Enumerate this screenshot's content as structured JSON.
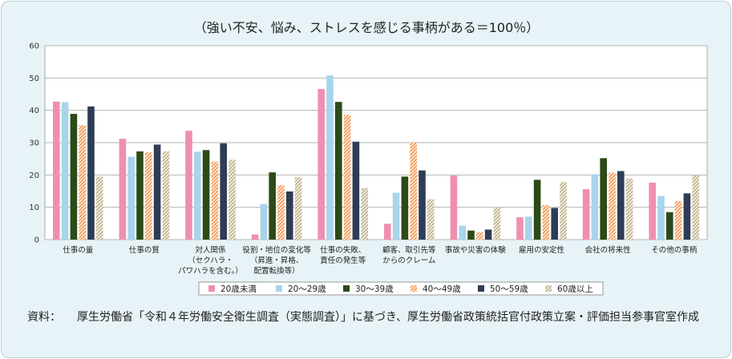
{
  "chart_data": {
    "type": "bar",
    "title": "（強い不安、悩み、ストレスを感じる事柄がある＝100％）",
    "xlabel": "",
    "ylabel": "",
    "ylim": [
      0,
      60
    ],
    "yticks": [
      0,
      10,
      20,
      30,
      40,
      50,
      60
    ],
    "grid": true,
    "legend_position": "bottom",
    "categories": [
      [
        "仕事の量"
      ],
      [
        "仕事の質"
      ],
      [
        "対人関係",
        "（セクハラ・",
        "パワハラを含む。）"
      ],
      [
        "役割・地位の変化等",
        "（昇進・昇格、",
        "配置転換等）"
      ],
      [
        "仕事の失敗、",
        "責任の発生等"
      ],
      [
        "顧客、取引先等",
        "からのクレーム"
      ],
      [
        "事故や災害の体験"
      ],
      [
        "雇用の安定性"
      ],
      [
        "会社の将来性"
      ],
      [
        "その他の事柄"
      ]
    ],
    "series": [
      {
        "name": "20歳未満",
        "color": "#ef8fb0",
        "pattern": "solid",
        "values": [
          42.7,
          31.2,
          33.7,
          1.6,
          46.6,
          4.9,
          19.8,
          6.9,
          15.6,
          17.6
        ]
      },
      {
        "name": "20～29歳",
        "color": "#a8d4ec",
        "pattern": "solid",
        "values": [
          42.5,
          25.6,
          27.2,
          11.0,
          50.8,
          14.5,
          4.3,
          7.1,
          20.2,
          13.5
        ]
      },
      {
        "name": "30～39歳",
        "color": "#2c4a18",
        "pattern": "solid",
        "values": [
          38.9,
          27.3,
          27.7,
          20.8,
          42.6,
          19.5,
          2.8,
          18.5,
          25.2,
          8.5
        ]
      },
      {
        "name": "40～49歳",
        "color": "#f59a55",
        "pattern": "stripes",
        "values": [
          35.4,
          27.0,
          24.1,
          16.8,
          38.6,
          30.2,
          2.3,
          10.7,
          20.7,
          11.9
        ]
      },
      {
        "name": "50～59歳",
        "color": "#2e3d55",
        "pattern": "solid",
        "values": [
          41.2,
          29.4,
          29.8,
          14.9,
          30.3,
          21.4,
          3.1,
          9.8,
          21.2,
          14.3
        ]
      },
      {
        "name": "60歳以上",
        "color": "#c2b38d",
        "pattern": "stripes",
        "values": [
          19.5,
          27.3,
          24.7,
          19.3,
          16.0,
          12.5,
          10.0,
          17.8,
          18.9,
          19.9
        ]
      }
    ]
  },
  "source": {
    "label": "資料：",
    "text": "厚生労働省「令和４年労働安全衛生調査（実態調査）」に基づき、厚生労働省政策統括官付政策立案・評価担当参事官室作成"
  }
}
